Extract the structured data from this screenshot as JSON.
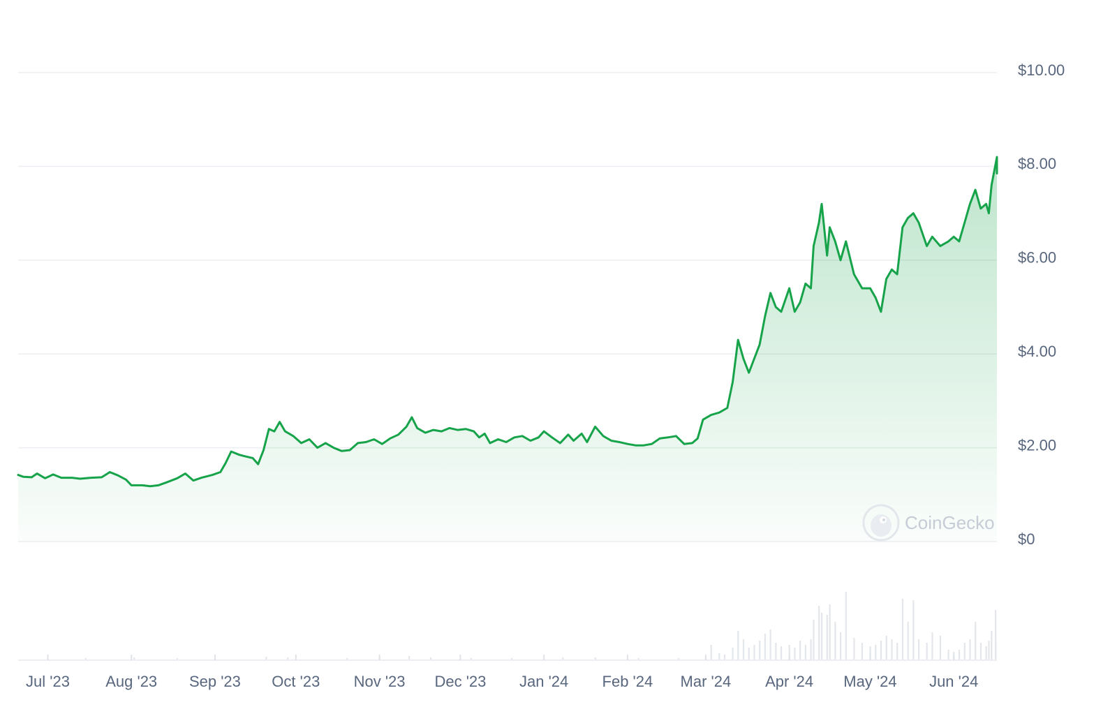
{
  "chart_data": {
    "type": "area",
    "title": "",
    "xlabel": "",
    "ylabel": "",
    "x_range": [
      "2023-06-20",
      "2024-06-17"
    ],
    "x_tick_dates": [
      "2023-07-01",
      "2023-08-01",
      "2023-09-01",
      "2023-10-01",
      "2023-11-01",
      "2023-12-01",
      "2024-01-01",
      "2024-02-01",
      "2024-03-01",
      "2024-04-01",
      "2024-05-01",
      "2024-06-01"
    ],
    "x_tick_labels": [
      "Jul '23",
      "Aug '23",
      "Sep '23",
      "Oct '23",
      "Nov '23",
      "Dec '23",
      "Jan '24",
      "Feb '24",
      "Mar '24",
      "Apr '24",
      "May '24",
      "Jun '24"
    ],
    "y_ticks": [
      0,
      2,
      4,
      6,
      8,
      10
    ],
    "y_tick_labels": [
      "$0",
      "$2.00",
      "$4.00",
      "$6.00",
      "$8.00",
      "$10.00"
    ],
    "ylim": [
      0,
      10
    ],
    "grid": true,
    "line_color": "#16a34a",
    "fill_color": "#16a34a",
    "price_series": [
      [
        "2023-06-20",
        1.42
      ],
      [
        "2023-06-22",
        1.38
      ],
      [
        "2023-06-25",
        1.37
      ],
      [
        "2023-06-27",
        1.45
      ],
      [
        "2023-06-30",
        1.35
      ],
      [
        "2023-07-03",
        1.43
      ],
      [
        "2023-07-06",
        1.36
      ],
      [
        "2023-07-10",
        1.36
      ],
      [
        "2023-07-13",
        1.34
      ],
      [
        "2023-07-17",
        1.36
      ],
      [
        "2023-07-21",
        1.37
      ],
      [
        "2023-07-24",
        1.48
      ],
      [
        "2023-07-27",
        1.41
      ],
      [
        "2023-07-30",
        1.32
      ],
      [
        "2023-08-01",
        1.2
      ],
      [
        "2023-08-05",
        1.2
      ],
      [
        "2023-08-08",
        1.18
      ],
      [
        "2023-08-11",
        1.2
      ],
      [
        "2023-08-14",
        1.26
      ],
      [
        "2023-08-18",
        1.35
      ],
      [
        "2023-08-21",
        1.45
      ],
      [
        "2023-08-24",
        1.3
      ],
      [
        "2023-08-27",
        1.36
      ],
      [
        "2023-08-31",
        1.42
      ],
      [
        "2023-09-03",
        1.48
      ],
      [
        "2023-09-05",
        1.68
      ],
      [
        "2023-09-07",
        1.92
      ],
      [
        "2023-09-10",
        1.85
      ],
      [
        "2023-09-12",
        1.82
      ],
      [
        "2023-09-15",
        1.78
      ],
      [
        "2023-09-17",
        1.65
      ],
      [
        "2023-09-19",
        1.95
      ],
      [
        "2023-09-21",
        2.4
      ],
      [
        "2023-09-23",
        2.35
      ],
      [
        "2023-09-25",
        2.55
      ],
      [
        "2023-09-27",
        2.35
      ],
      [
        "2023-09-30",
        2.25
      ],
      [
        "2023-10-03",
        2.1
      ],
      [
        "2023-10-06",
        2.18
      ],
      [
        "2023-10-09",
        2.0
      ],
      [
        "2023-10-12",
        2.1
      ],
      [
        "2023-10-15",
        2.0
      ],
      [
        "2023-10-18",
        1.93
      ],
      [
        "2023-10-21",
        1.95
      ],
      [
        "2023-10-24",
        2.1
      ],
      [
        "2023-10-27",
        2.12
      ],
      [
        "2023-10-30",
        2.18
      ],
      [
        "2023-11-02",
        2.08
      ],
      [
        "2023-11-05",
        2.2
      ],
      [
        "2023-11-08",
        2.28
      ],
      [
        "2023-11-11",
        2.45
      ],
      [
        "2023-11-13",
        2.65
      ],
      [
        "2023-11-15",
        2.42
      ],
      [
        "2023-11-18",
        2.32
      ],
      [
        "2023-11-21",
        2.38
      ],
      [
        "2023-11-24",
        2.35
      ],
      [
        "2023-11-27",
        2.42
      ],
      [
        "2023-11-30",
        2.38
      ],
      [
        "2023-12-03",
        2.4
      ],
      [
        "2023-12-06",
        2.35
      ],
      [
        "2023-12-08",
        2.22
      ],
      [
        "2023-12-10",
        2.3
      ],
      [
        "2023-12-12",
        2.1
      ],
      [
        "2023-12-15",
        2.18
      ],
      [
        "2023-12-18",
        2.12
      ],
      [
        "2023-12-21",
        2.22
      ],
      [
        "2023-12-24",
        2.25
      ],
      [
        "2023-12-27",
        2.15
      ],
      [
        "2023-12-30",
        2.22
      ],
      [
        "2024-01-01",
        2.35
      ],
      [
        "2024-01-04",
        2.22
      ],
      [
        "2024-01-07",
        2.1
      ],
      [
        "2024-01-10",
        2.28
      ],
      [
        "2024-01-12",
        2.15
      ],
      [
        "2024-01-15",
        2.3
      ],
      [
        "2024-01-17",
        2.12
      ],
      [
        "2024-01-20",
        2.45
      ],
      [
        "2024-01-23",
        2.25
      ],
      [
        "2024-01-26",
        2.15
      ],
      [
        "2024-01-29",
        2.12
      ],
      [
        "2024-02-01",
        2.08
      ],
      [
        "2024-02-04",
        2.05
      ],
      [
        "2024-02-07",
        2.05
      ],
      [
        "2024-02-10",
        2.08
      ],
      [
        "2024-02-13",
        2.2
      ],
      [
        "2024-02-16",
        2.22
      ],
      [
        "2024-02-19",
        2.25
      ],
      [
        "2024-02-22",
        2.08
      ],
      [
        "2024-02-25",
        2.1
      ],
      [
        "2024-02-27",
        2.2
      ],
      [
        "2024-02-29",
        2.6
      ],
      [
        "2024-03-03",
        2.7
      ],
      [
        "2024-03-06",
        2.75
      ],
      [
        "2024-03-09",
        2.85
      ],
      [
        "2024-03-11",
        3.4
      ],
      [
        "2024-03-13",
        4.3
      ],
      [
        "2024-03-15",
        3.9
      ],
      [
        "2024-03-17",
        3.6
      ],
      [
        "2024-03-19",
        3.9
      ],
      [
        "2024-03-21",
        4.2
      ],
      [
        "2024-03-23",
        4.8
      ],
      [
        "2024-03-25",
        5.3
      ],
      [
        "2024-03-27",
        5.0
      ],
      [
        "2024-03-29",
        4.9
      ],
      [
        "2024-04-01",
        5.4
      ],
      [
        "2024-04-03",
        4.9
      ],
      [
        "2024-04-05",
        5.1
      ],
      [
        "2024-04-07",
        5.5
      ],
      [
        "2024-04-09",
        5.4
      ],
      [
        "2024-04-10",
        6.3
      ],
      [
        "2024-04-12",
        6.8
      ],
      [
        "2024-04-13",
        7.2
      ],
      [
        "2024-04-15",
        6.1
      ],
      [
        "2024-04-16",
        6.7
      ],
      [
        "2024-04-18",
        6.4
      ],
      [
        "2024-04-20",
        6.0
      ],
      [
        "2024-04-22",
        6.4
      ],
      [
        "2024-04-25",
        5.7
      ],
      [
        "2024-04-28",
        5.4
      ],
      [
        "2024-05-01",
        5.4
      ],
      [
        "2024-05-03",
        5.2
      ],
      [
        "2024-05-05",
        4.9
      ],
      [
        "2024-05-07",
        5.6
      ],
      [
        "2024-05-09",
        5.8
      ],
      [
        "2024-05-11",
        5.7
      ],
      [
        "2024-05-13",
        6.7
      ],
      [
        "2024-05-15",
        6.9
      ],
      [
        "2024-05-17",
        7.0
      ],
      [
        "2024-05-19",
        6.8
      ],
      [
        "2024-05-22",
        6.3
      ],
      [
        "2024-05-24",
        6.5
      ],
      [
        "2024-05-27",
        6.3
      ],
      [
        "2024-05-30",
        6.4
      ],
      [
        "2024-06-01",
        6.5
      ],
      [
        "2024-06-03",
        6.4
      ],
      [
        "2024-06-05",
        6.8
      ],
      [
        "2024-06-07",
        7.2
      ],
      [
        "2024-06-09",
        7.5
      ],
      [
        "2024-06-11",
        7.1
      ],
      [
        "2024-06-13",
        7.2
      ],
      [
        "2024-06-14",
        7.0
      ],
      [
        "2024-06-15",
        7.6
      ],
      [
        "2024-06-17",
        8.2
      ],
      [
        "2024-06-18",
        7.9
      ],
      [
        "2024-06-19",
        7.9
      ],
      [
        "2024-06-20",
        7.85
      ]
    ],
    "volume_series": [
      [
        "2023-07-15",
        0.03
      ],
      [
        "2023-08-02",
        0.04
      ],
      [
        "2023-08-18",
        0.03
      ],
      [
        "2023-09-20",
        0.05
      ],
      [
        "2023-09-28",
        0.04
      ],
      [
        "2023-10-20",
        0.03
      ],
      [
        "2023-11-01",
        0.05
      ],
      [
        "2023-11-12",
        0.06
      ],
      [
        "2023-11-20",
        0.04
      ],
      [
        "2023-12-05",
        0.03
      ],
      [
        "2023-12-20",
        0.03
      ],
      [
        "2024-01-08",
        0.04
      ],
      [
        "2024-01-20",
        0.04
      ],
      [
        "2024-02-05",
        0.03
      ],
      [
        "2024-02-20",
        0.03
      ],
      [
        "2024-03-01",
        0.05
      ],
      [
        "2024-03-03",
        0.22
      ],
      [
        "2024-03-06",
        0.1
      ],
      [
        "2024-03-08",
        0.08
      ],
      [
        "2024-03-11",
        0.18
      ],
      [
        "2024-03-13",
        0.42
      ],
      [
        "2024-03-15",
        0.3
      ],
      [
        "2024-03-17",
        0.18
      ],
      [
        "2024-03-19",
        0.22
      ],
      [
        "2024-03-21",
        0.28
      ],
      [
        "2024-03-23",
        0.38
      ],
      [
        "2024-03-25",
        0.44
      ],
      [
        "2024-03-27",
        0.25
      ],
      [
        "2024-03-29",
        0.2
      ],
      [
        "2024-04-01",
        0.22
      ],
      [
        "2024-04-03",
        0.18
      ],
      [
        "2024-04-05",
        0.28
      ],
      [
        "2024-04-07",
        0.22
      ],
      [
        "2024-04-09",
        0.3
      ],
      [
        "2024-04-10",
        0.58
      ],
      [
        "2024-04-12",
        0.78
      ],
      [
        "2024-04-13",
        0.68
      ],
      [
        "2024-04-15",
        0.65
      ],
      [
        "2024-04-16",
        0.8
      ],
      [
        "2024-04-18",
        0.55
      ],
      [
        "2024-04-20",
        0.4
      ],
      [
        "2024-04-22",
        0.98
      ],
      [
        "2024-04-25",
        0.32
      ],
      [
        "2024-04-28",
        0.25
      ],
      [
        "2024-05-01",
        0.2
      ],
      [
        "2024-05-03",
        0.22
      ],
      [
        "2024-05-05",
        0.28
      ],
      [
        "2024-05-07",
        0.35
      ],
      [
        "2024-05-09",
        0.3
      ],
      [
        "2024-05-11",
        0.25
      ],
      [
        "2024-05-13",
        0.88
      ],
      [
        "2024-05-15",
        0.55
      ],
      [
        "2024-05-17",
        0.86
      ],
      [
        "2024-05-19",
        0.3
      ],
      [
        "2024-05-22",
        0.25
      ],
      [
        "2024-05-24",
        0.4
      ],
      [
        "2024-05-27",
        0.35
      ],
      [
        "2024-05-30",
        0.15
      ],
      [
        "2024-06-01",
        0.12
      ],
      [
        "2024-06-03",
        0.15
      ],
      [
        "2024-06-05",
        0.25
      ],
      [
        "2024-06-07",
        0.3
      ],
      [
        "2024-06-09",
        0.55
      ],
      [
        "2024-06-11",
        0.25
      ],
      [
        "2024-06-13",
        0.2
      ],
      [
        "2024-06-14",
        0.28
      ],
      [
        "2024-06-15",
        0.42
      ],
      [
        "2024-06-17",
        0.72
      ],
      [
        "2024-06-18",
        0.38
      ],
      [
        "2024-06-19",
        0.3
      ],
      [
        "2024-06-20",
        0.25
      ]
    ]
  },
  "watermark": {
    "text": "CoinGecko",
    "icon": "coingecko-logo-icon"
  }
}
